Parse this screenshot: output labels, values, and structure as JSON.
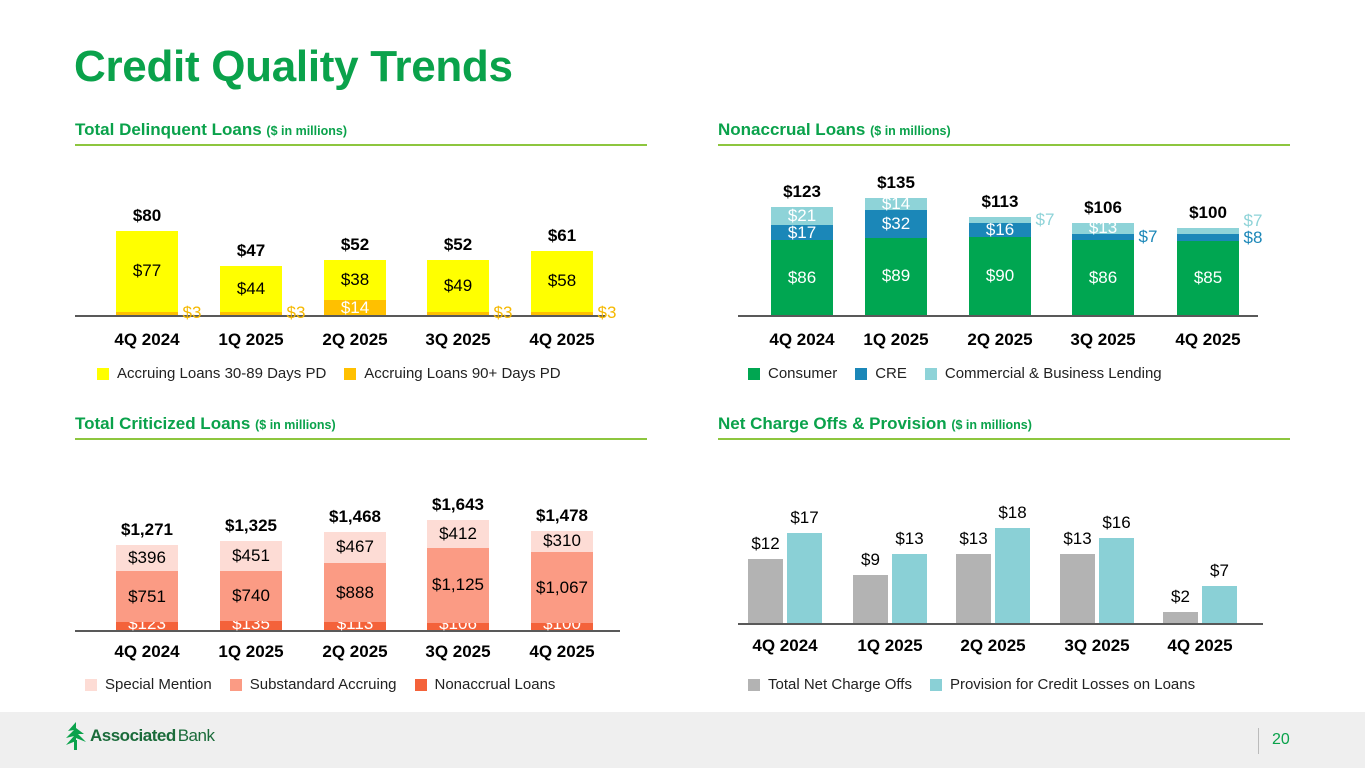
{
  "title": "Credit Quality Trends",
  "page_number": "20",
  "logo": {
    "bold": "Associated",
    "light": "Bank"
  },
  "chart_data": [
    {
      "id": "delinquent",
      "type": "bar",
      "stacked": true,
      "title": "Total Delinquent Loans",
      "subtitle": "($ in millions)",
      "categories": [
        "4Q 2024",
        "1Q 2025",
        "2Q 2025",
        "3Q 2025",
        "4Q 2025"
      ],
      "series": [
        {
          "name": "Accruing Loans 90+ Days PD",
          "values": [
            3,
            3,
            14,
            3,
            3
          ],
          "labels": [
            "$3",
            "$3",
            "$14",
            "$3",
            "$3"
          ],
          "color": "#FFC000",
          "label_color": "#F5B800",
          "inside_label_color": "#FFFFFF"
        },
        {
          "name": "Accruing Loans 30-89 Days PD",
          "values": [
            77,
            44,
            38,
            49,
            58
          ],
          "labels": [
            "$77",
            "$44",
            "$38",
            "$49",
            "$58"
          ],
          "color": "#FFFF00",
          "label_color": "#000000",
          "inside_label_color": "#000000"
        }
      ],
      "legend_order": [
        1,
        0
      ],
      "totals": [
        "$80",
        "$47",
        "$52",
        "$52",
        "$61"
      ]
    },
    {
      "id": "nonaccrual",
      "type": "bar",
      "stacked": true,
      "title": "Nonaccrual Loans",
      "subtitle": "($ in millions)",
      "categories": [
        "4Q 2024",
        "1Q 2025",
        "2Q 2025",
        "3Q 2025",
        "4Q 2025"
      ],
      "series": [
        {
          "name": "Consumer",
          "values": [
            86,
            89,
            90,
            86,
            85
          ],
          "labels": [
            "$86",
            "$89",
            "$90",
            "$86",
            "$85"
          ],
          "color": "#00A651",
          "label_color": "#00A651",
          "inside_label_color": "#FFFFFF"
        },
        {
          "name": "CRE",
          "values": [
            17,
            32,
            16,
            7,
            8
          ],
          "labels": [
            "$17",
            "$32",
            "$16",
            "$7",
            "$8"
          ],
          "color": "#1B87B8",
          "label_color": "#1B87B8",
          "inside_label_color": "#FFFFFF"
        },
        {
          "name": "Commercial & Business Lending",
          "values": [
            21,
            14,
            7,
            13,
            7
          ],
          "labels": [
            "$21",
            "$14",
            "$7",
            "$13",
            "$7"
          ],
          "color": "#8ED3D8",
          "label_color": "#8ED3D8",
          "inside_label_color": "#FFFFFF"
        }
      ],
      "legend_order": [
        0,
        1,
        2
      ],
      "totals": [
        "$123",
        "$135",
        "$113",
        "$106",
        "$100"
      ]
    },
    {
      "id": "criticized",
      "type": "bar",
      "stacked": true,
      "title": "Total Criticized Loans",
      "subtitle": "($ in millions)",
      "categories": [
        "4Q 2024",
        "1Q 2025",
        "2Q 2025",
        "3Q 2025",
        "4Q 2025"
      ],
      "series": [
        {
          "name": "Nonaccrual Loans",
          "values": [
            123,
            135,
            113,
            106,
            100
          ],
          "labels": [
            "$123",
            "$135",
            "$113",
            "$106",
            "$100"
          ],
          "color": "#F4623A",
          "label_color": "#FFFFFF",
          "inside_label_color": "#FFFFFF"
        },
        {
          "name": "Substandard Accruing",
          "values": [
            751,
            740,
            888,
            1125,
            1067
          ],
          "labels": [
            "$751",
            "$740",
            "$888",
            "$1,125",
            "$1,067"
          ],
          "color": "#FB9B84",
          "label_color": "#000000",
          "inside_label_color": "#000000"
        },
        {
          "name": "Special Mention",
          "values": [
            396,
            451,
            467,
            412,
            310
          ],
          "labels": [
            "$396",
            "$451",
            "$467",
            "$412",
            "$310"
          ],
          "color": "#FDDCD5",
          "label_color": "#000000",
          "inside_label_color": "#000000"
        }
      ],
      "legend_order": [
        2,
        1,
        0
      ],
      "totals": [
        "$1,271",
        "$1,325",
        "$1,468",
        "$1,643",
        "$1,478"
      ]
    },
    {
      "id": "nco",
      "type": "bar",
      "stacked": false,
      "title": "Net Charge Offs & Provision",
      "subtitle": "($ in millions)",
      "categories": [
        "4Q 2024",
        "1Q 2025",
        "2Q 2025",
        "3Q 2025",
        "4Q 2025"
      ],
      "series": [
        {
          "name": "Total Net Charge Offs",
          "values": [
            12,
            9,
            13,
            13,
            2
          ],
          "labels": [
            "$12",
            "$9",
            "$13",
            "$13",
            "$2"
          ],
          "color": "#B3B3B3",
          "label_color": "#000000"
        },
        {
          "name": "Provision for Credit Losses on Loans",
          "values": [
            17,
            13,
            18,
            16,
            7
          ],
          "labels": [
            "$17",
            "$13",
            "$18",
            "$16",
            "$7"
          ],
          "color": "#8AD0D6",
          "label_color": "#000000"
        }
      ],
      "legend_order": [
        0,
        1
      ]
    }
  ]
}
